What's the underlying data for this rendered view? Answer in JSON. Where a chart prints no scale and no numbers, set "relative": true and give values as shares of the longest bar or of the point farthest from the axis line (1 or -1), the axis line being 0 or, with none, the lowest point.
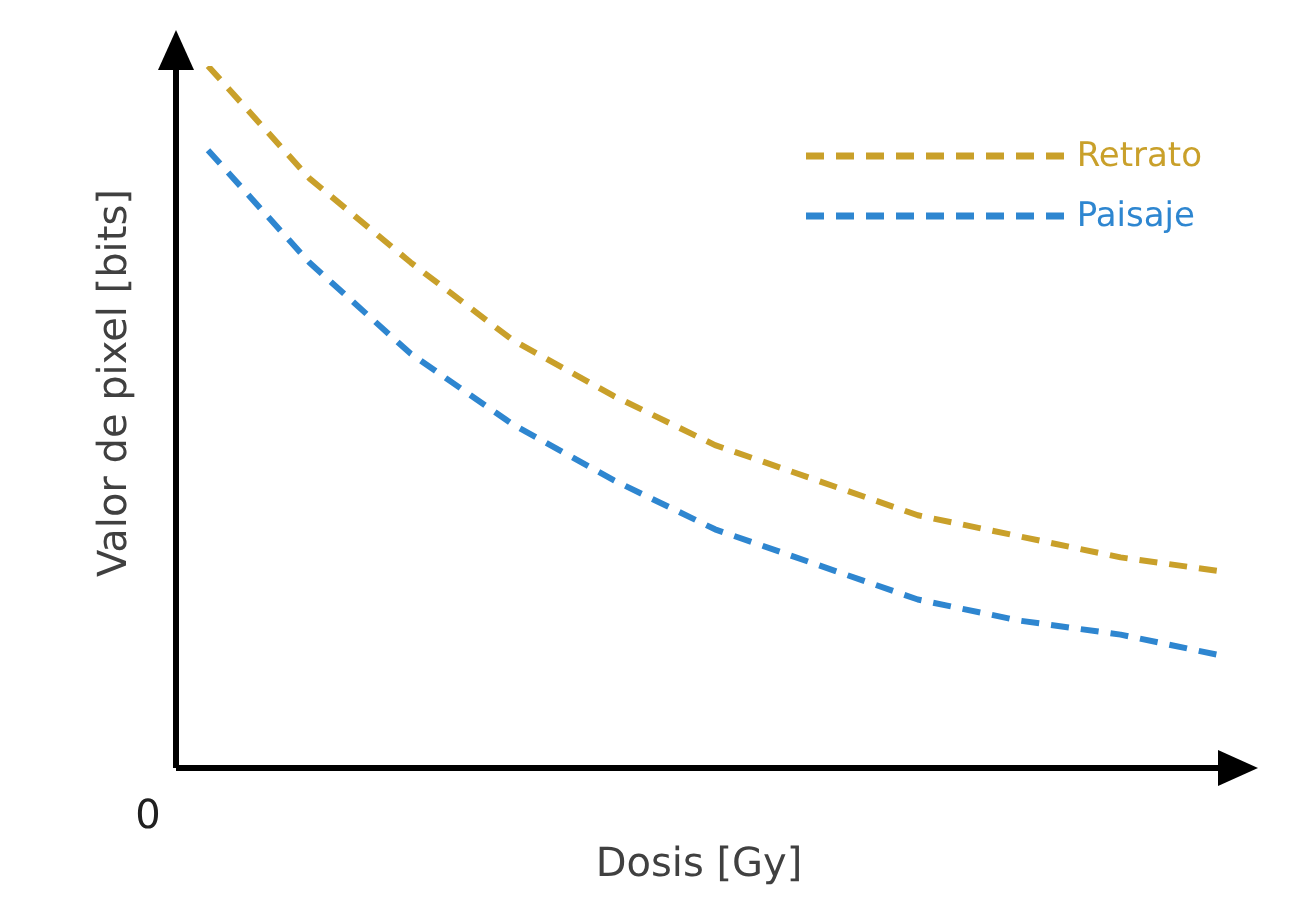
{
  "chart_data": {
    "type": "line",
    "relative": true,
    "xlabel": "Dosis [Gy]",
    "ylabel": "Valor de pixel [bits]",
    "annotations": [
      "0"
    ],
    "categories": [
      null,
      null,
      null,
      null,
      null,
      null,
      null,
      null,
      null,
      null,
      null
    ],
    "series": [
      {
        "name": "Retrato",
        "color": "#c9a02a",
        "values": [
          1,
          0.84,
          0.72,
          0.61,
          0.53,
          0.46,
          0.41,
          0.36,
          0.33,
          0.3,
          0.28
        ]
      },
      {
        "name": "Paisaje",
        "color": "#2e86d0",
        "values": [
          0.88,
          0.72,
          0.59,
          0.49,
          0.41,
          0.34,
          0.29,
          0.24,
          0.21,
          0.19,
          0.16
        ]
      }
    ],
    "line_style": "dashed",
    "marker": "none",
    "grid": false,
    "legend": "top right"
  }
}
